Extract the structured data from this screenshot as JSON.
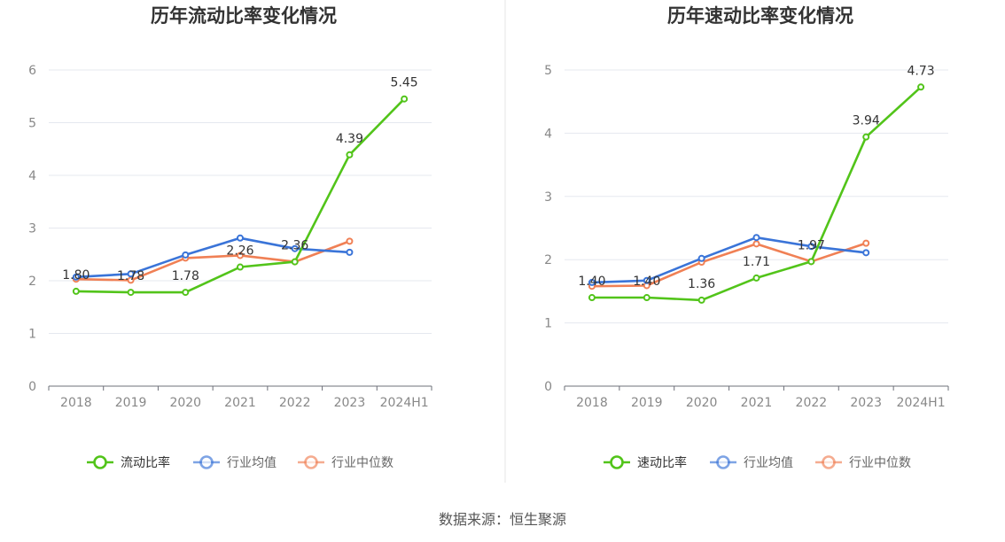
{
  "source_label": "数据来源：恒生聚源",
  "chart_data": [
    {
      "type": "line",
      "title": "历年流动比率变化情况",
      "categories": [
        "2018",
        "2019",
        "2020",
        "2021",
        "2022",
        "2023",
        "2024H1"
      ],
      "ylim": [
        0,
        6
      ],
      "yticks": [
        0,
        1,
        2,
        3,
        4,
        5,
        6
      ],
      "grid": true,
      "legend_position": "bottom",
      "series": [
        {
          "name": "流动比率",
          "color": "#52c41a",
          "labeled": true,
          "values": [
            1.8,
            1.78,
            1.78,
            2.26,
            2.36,
            4.39,
            5.45
          ]
        },
        {
          "name": "行业均值",
          "color": "#3a74d8",
          "labeled": false,
          "values": [
            2.07,
            2.13,
            2.49,
            2.81,
            2.61,
            2.54,
            null
          ]
        },
        {
          "name": "行业中位数",
          "color": "#f08055",
          "labeled": false,
          "values": [
            2.03,
            2.01,
            2.43,
            2.48,
            2.36,
            2.75,
            null
          ]
        }
      ]
    },
    {
      "type": "line",
      "title": "历年速动比率变化情况",
      "categories": [
        "2018",
        "2019",
        "2020",
        "2021",
        "2022",
        "2023",
        "2024H1"
      ],
      "ylim": [
        0,
        5
      ],
      "yticks": [
        0,
        1,
        2,
        3,
        4,
        5
      ],
      "grid": true,
      "legend_position": "bottom",
      "series": [
        {
          "name": "速动比率",
          "color": "#52c41a",
          "labeled": true,
          "values": [
            1.4,
            1.4,
            1.36,
            1.71,
            1.97,
            3.94,
            4.73
          ]
        },
        {
          "name": "行业均值",
          "color": "#3a74d8",
          "labeled": false,
          "values": [
            1.64,
            1.67,
            2.02,
            2.35,
            2.21,
            2.11,
            null
          ]
        },
        {
          "name": "行业中位数",
          "color": "#f08055",
          "labeled": false,
          "values": [
            1.58,
            1.59,
            1.96,
            2.25,
            1.97,
            2.26,
            null
          ]
        }
      ]
    }
  ]
}
